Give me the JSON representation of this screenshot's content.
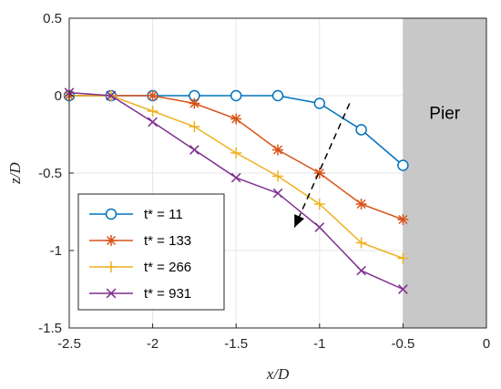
{
  "chart_data": {
    "type": "line",
    "xlabel": "x/D",
    "ylabel": "z/D",
    "xlim": [
      -2.5,
      0
    ],
    "ylim": [
      -1.5,
      0.5
    ],
    "xticks": [
      "-2.5",
      "-2",
      "-1.5",
      "-1",
      "-0.5",
      "0"
    ],
    "yticks": [
      "0.5",
      "0",
      "-0.5",
      "-1",
      "-1.5"
    ],
    "grid": true,
    "legend_placement": "bottom-left",
    "pier": {
      "label": "Pier",
      "x_from": -0.5,
      "x_to": 0,
      "color": "#c8c8c8"
    },
    "trend_arrow": {
      "from": [
        -0.82,
        -0.05
      ],
      "to": [
        -1.15,
        -0.85
      ]
    },
    "series": [
      {
        "name": "t* = 11",
        "color": "#0072BD",
        "marker": "circle",
        "x": [
          -2.5,
          -2.25,
          -2.0,
          -1.75,
          -1.5,
          -1.25,
          -1.0,
          -0.75,
          -0.5
        ],
        "y": [
          0.0,
          0.0,
          0.0,
          0.0,
          0.0,
          0.0,
          -0.05,
          -0.22,
          -0.45
        ]
      },
      {
        "name": "t* = 133",
        "color": "#D95319",
        "marker": "asterisk",
        "x": [
          -2.5,
          -2.25,
          -2.0,
          -1.75,
          -1.5,
          -1.25,
          -1.0,
          -0.75,
          -0.5
        ],
        "y": [
          0.0,
          0.0,
          0.0,
          -0.05,
          -0.15,
          -0.35,
          -0.5,
          -0.7,
          -0.8
        ]
      },
      {
        "name": "t* = 266",
        "color": "#EDB120",
        "marker": "plus",
        "x": [
          -2.5,
          -2.25,
          -2.0,
          -1.75,
          -1.5,
          -1.25,
          -1.0,
          -0.75,
          -0.5
        ],
        "y": [
          0.0,
          0.0,
          -0.1,
          -0.2,
          -0.37,
          -0.52,
          -0.7,
          -0.95,
          -1.05
        ]
      },
      {
        "name": "t* = 931",
        "color": "#7E2F8E",
        "marker": "x",
        "x": [
          -2.5,
          -2.25,
          -2.0,
          -1.75,
          -1.5,
          -1.25,
          -1.0,
          -0.75,
          -0.5
        ],
        "y": [
          0.02,
          0.0,
          -0.17,
          -0.35,
          -0.53,
          -0.63,
          -0.85,
          -1.13,
          -1.25
        ]
      }
    ]
  }
}
